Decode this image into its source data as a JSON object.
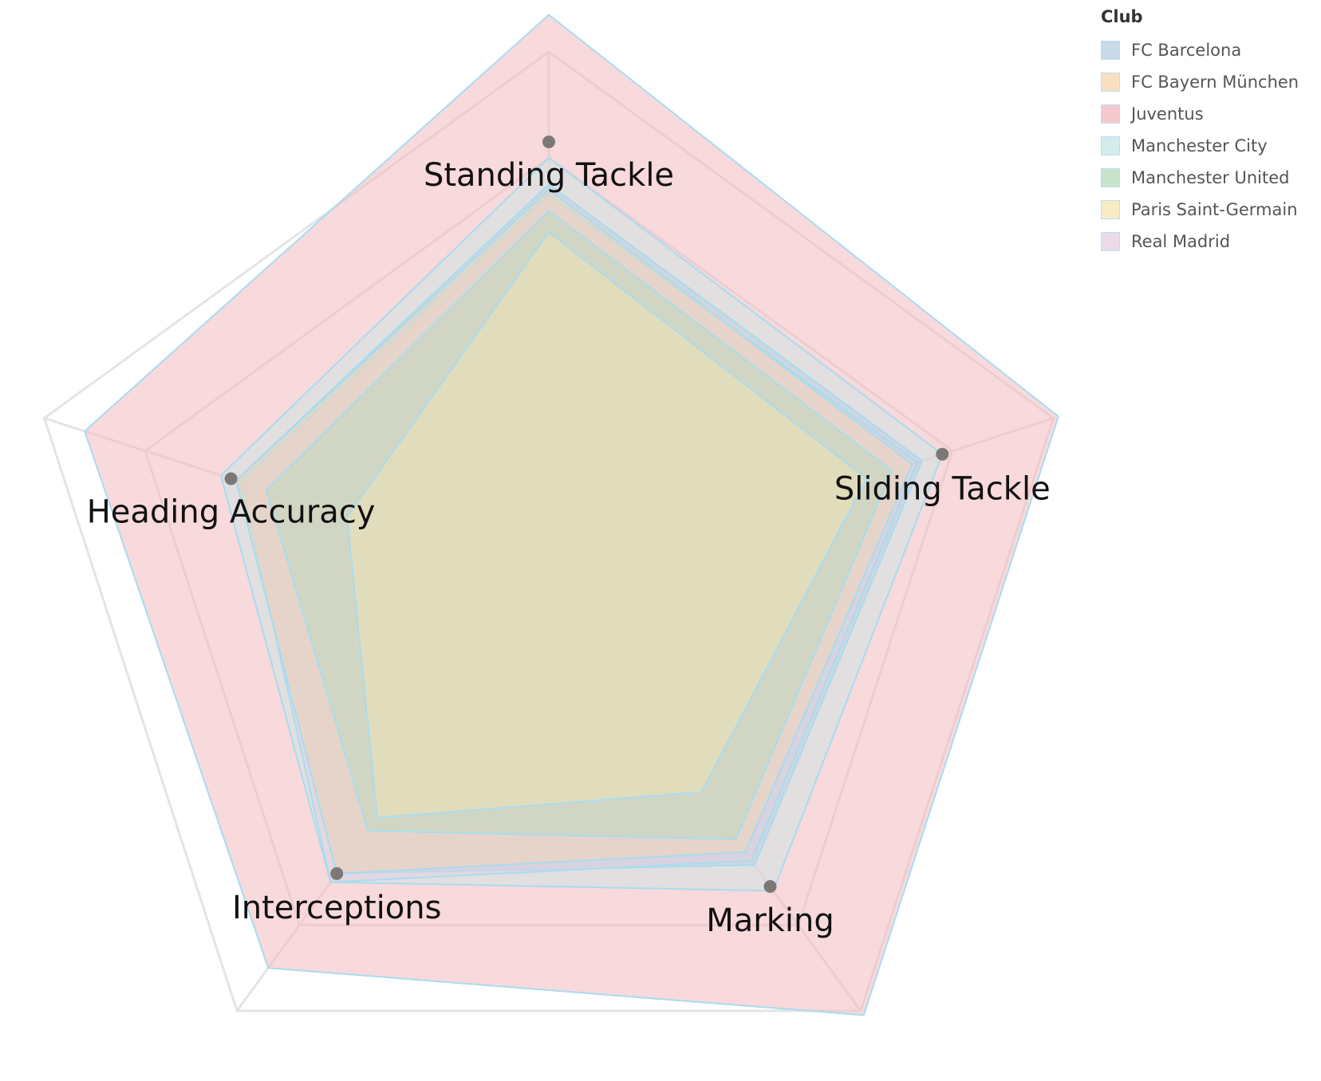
{
  "chart_data": {
    "type": "radar",
    "axes": [
      "Standing Tackle",
      "Sliding Tackle",
      "Marking",
      "Interceptions",
      "Heading Accuracy"
    ],
    "range": [
      0,
      100
    ],
    "rings": 5,
    "series": [
      {
        "name": "FC Barcelona",
        "color": "#b6cde0",
        "values": [
          75,
          74,
          66,
          68,
          62
        ]
      },
      {
        "name": "FC Bayern München",
        "color": "#f8d6b0",
        "values": [
          74,
          72,
          63,
          68,
          62
        ]
      },
      {
        "name": "Juventus",
        "color": "#f2b9bf",
        "values": [
          107,
          101,
          101,
          90,
          92
        ]
      },
      {
        "name": "Manchester City",
        "color": "#c7e6e6",
        "values": [
          80,
          78,
          72,
          70,
          65
        ]
      },
      {
        "name": "Manchester United",
        "color": "#b7d9bc",
        "values": [
          70,
          68,
          60,
          58,
          56
        ]
      },
      {
        "name": "Paris Saint-Germain",
        "color": "#f5e5b4",
        "values": [
          66,
          63,
          49,
          55,
          40
        ]
      },
      {
        "name": "Real Madrid",
        "color": "#e5cfe2",
        "values": [
          73,
          73,
          65,
          70,
          61
        ]
      }
    ],
    "average_markers": [
      83,
      78,
      71,
      68,
      63
    ],
    "legend_title": "Club",
    "legend_position": "top-right"
  }
}
